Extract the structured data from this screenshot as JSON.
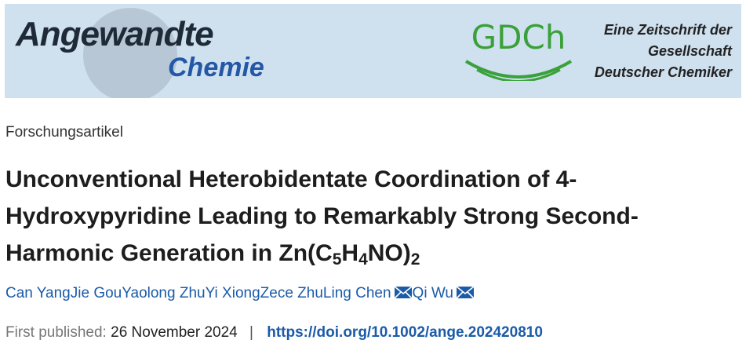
{
  "banner": {
    "journal": {
      "line1": "Angewandte",
      "line2": "Chemie"
    },
    "society": {
      "logo": "GDCh",
      "tagline": [
        "Eine Zeitschrift der",
        "Gesellschaft",
        "Deutscher Chemiker"
      ]
    }
  },
  "article_type": "Forschungsartikel",
  "title": [
    {
      "text": "Unconventional Heterobidentate Coordination of 4-Hydroxypyridine Leading to Remarkably Strong Second-Harmonic Generation in Zn(C"
    },
    {
      "text": "5",
      "sub": true
    },
    {
      "text": "H"
    },
    {
      "text": "4",
      "sub": true
    },
    {
      "text": "NO)"
    },
    {
      "text": "2",
      "sub": true
    }
  ],
  "authors": [
    {
      "name": "Can Yang",
      "email": false
    },
    {
      "name": "Jie Gou",
      "email": false
    },
    {
      "name": "Yaolong Zhu",
      "email": false
    },
    {
      "name": "Yi Xiong",
      "email": false
    },
    {
      "name": "Zece Zhu",
      "email": false
    },
    {
      "name": "Ling Chen",
      "email": true
    },
    {
      "name": "Qi Wu",
      "email": true
    }
  ],
  "publication": {
    "label": "First published:",
    "date": "26 November 2024",
    "separator": "|",
    "doi": "https://doi.org/10.1002/ange.202420810"
  }
}
